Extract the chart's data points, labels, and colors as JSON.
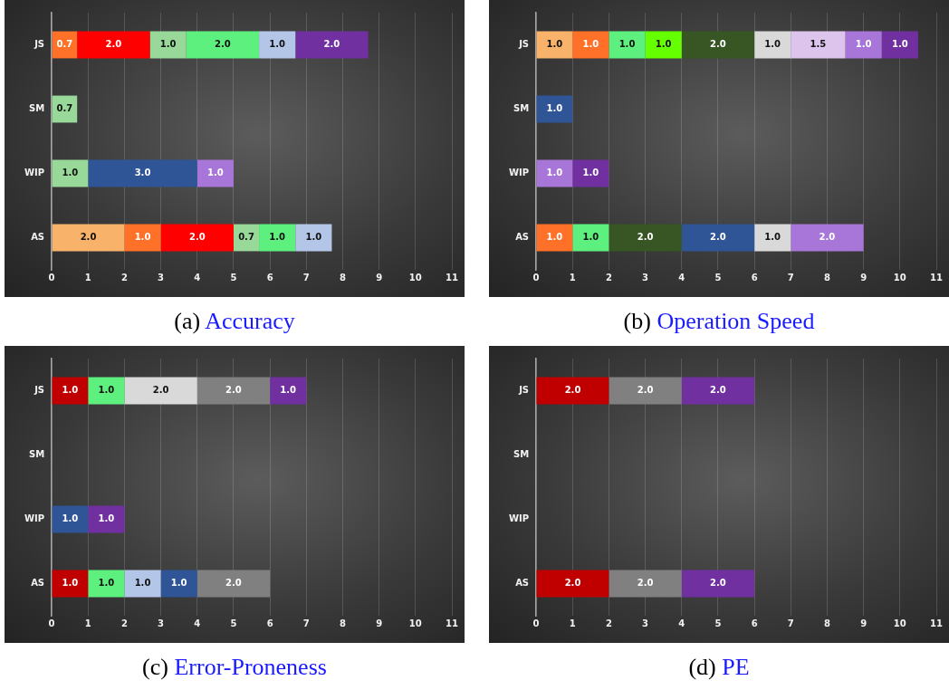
{
  "chart_data": [
    {
      "type": "bar",
      "title": "(a) Accuracy",
      "orientation": "horizontal",
      "stacked": true,
      "categories": [
        "JS",
        "SM",
        "WIP",
        "AS"
      ],
      "xlim": [
        0,
        11
      ],
      "xticks": [
        0,
        1,
        2,
        3,
        4,
        5,
        6,
        7,
        8,
        9,
        10,
        11
      ],
      "grid": "x",
      "legend": false,
      "series": [
        {
          "color": "#f8b26a",
          "values": [
            null,
            null,
            null,
            2.0
          ],
          "value_labels": [
            null,
            null,
            null,
            "2.0"
          ]
        },
        {
          "color": "#ff7128",
          "values": [
            0.7,
            null,
            null,
            1.0
          ],
          "value_labels": [
            "0.7",
            null,
            null,
            "1.0"
          ]
        },
        {
          "color": "#ff0000",
          "values": [
            2.0,
            null,
            null,
            2.0
          ],
          "value_labels": [
            "2.0",
            null,
            null,
            "2.0"
          ]
        },
        {
          "color": "#98d99a",
          "values": [
            1.0,
            0.7,
            1.0,
            0.7
          ],
          "value_labels": [
            "1.0",
            "0.7",
            "1.0",
            "0.7"
          ]
        },
        {
          "color": "#5ef07f",
          "values": [
            2.0,
            null,
            null,
            1.0
          ],
          "value_labels": [
            "2.0",
            null,
            null,
            "1.0"
          ]
        },
        {
          "color": "#b4c6e7",
          "values": [
            1.0,
            null,
            null,
            1.0
          ],
          "value_labels": [
            "1.0",
            null,
            null,
            "1.0"
          ]
        },
        {
          "color": "#2f5597",
          "values": [
            null,
            null,
            3.0,
            null
          ],
          "value_labels": [
            null,
            null,
            "3.0",
            null
          ]
        },
        {
          "color": "#a876d8",
          "values": [
            null,
            null,
            1.0,
            null
          ],
          "value_labels": [
            null,
            null,
            "1.0",
            null
          ]
        },
        {
          "color": "#7030a0",
          "values": [
            2.0,
            null,
            null,
            null
          ],
          "value_labels": [
            "2.0",
            null,
            null,
            null
          ]
        }
      ]
    },
    {
      "type": "bar",
      "title": "(b) Operation Speed",
      "orientation": "horizontal",
      "stacked": true,
      "categories": [
        "JS",
        "SM",
        "WIP",
        "AS"
      ],
      "xlim": [
        0,
        11
      ],
      "xticks": [
        0,
        1,
        2,
        3,
        4,
        5,
        6,
        7,
        8,
        9,
        10,
        11
      ],
      "grid": "x",
      "legend": false,
      "series": [
        {
          "color": "#f8b26a",
          "values": [
            1.0,
            null,
            null,
            null
          ],
          "value_labels": [
            "1.0",
            null,
            null,
            null
          ]
        },
        {
          "color": "#ff7128",
          "values": [
            1.0,
            null,
            null,
            1.0
          ],
          "value_labels": [
            "1.0",
            null,
            null,
            "1.0"
          ]
        },
        {
          "color": "#5ef07f",
          "values": [
            1.0,
            null,
            null,
            1.0
          ],
          "value_labels": [
            "1.0",
            null,
            null,
            "1.0"
          ]
        },
        {
          "color": "#66ff00",
          "values": [
            1.0,
            null,
            null,
            null
          ],
          "value_labels": [
            "1.0",
            null,
            null,
            null
          ]
        },
        {
          "color": "#375623",
          "values": [
            2.0,
            null,
            null,
            2.0
          ],
          "value_labels": [
            "2.0",
            null,
            null,
            "2.0"
          ]
        },
        {
          "color": "#2f5597",
          "values": [
            null,
            1.0,
            null,
            2.0
          ],
          "value_labels": [
            null,
            "1.0",
            null,
            "2.0"
          ]
        },
        {
          "color": "#d9d9d9",
          "values": [
            1.0,
            null,
            null,
            1.0
          ],
          "value_labels": [
            "1.0",
            null,
            null,
            "1.0"
          ]
        },
        {
          "color": "#dcc4ec",
          "values": [
            1.5,
            null,
            null,
            null
          ],
          "value_labels": [
            "1.5",
            null,
            null,
            null
          ]
        },
        {
          "color": "#a876d8",
          "values": [
            1.0,
            null,
            1.0,
            2.0
          ],
          "value_labels": [
            "1.0",
            null,
            "1.0",
            "2.0"
          ]
        },
        {
          "color": "#7030a0",
          "values": [
            1.0,
            null,
            1.0,
            null
          ],
          "value_labels": [
            "1.0",
            null,
            "1.0",
            null
          ]
        }
      ]
    },
    {
      "type": "bar",
      "title": "(c) Error-Proneness",
      "orientation": "horizontal",
      "stacked": true,
      "categories": [
        "JS",
        "SM",
        "WIP",
        "AS"
      ],
      "xlim": [
        0,
        11
      ],
      "xticks": [
        0,
        1,
        2,
        3,
        4,
        5,
        6,
        7,
        8,
        9,
        10,
        11
      ],
      "grid": "x",
      "legend": false,
      "series": [
        {
          "color": "#c00000",
          "values": [
            1.0,
            null,
            null,
            1.0
          ],
          "value_labels": [
            "1.0",
            null,
            null,
            "1.0"
          ]
        },
        {
          "color": "#5ef07f",
          "values": [
            1.0,
            null,
            null,
            1.0
          ],
          "value_labels": [
            "1.0",
            null,
            null,
            "1.0"
          ]
        },
        {
          "color": "#b4c6e7",
          "values": [
            null,
            null,
            null,
            1.0
          ],
          "value_labels": [
            null,
            null,
            null,
            "1.0"
          ]
        },
        {
          "color": "#2f5597",
          "values": [
            null,
            null,
            1.0,
            1.0
          ],
          "value_labels": [
            null,
            null,
            "1.0",
            "1.0"
          ]
        },
        {
          "color": "#d9d9d9",
          "values": [
            2.0,
            null,
            null,
            null
          ],
          "value_labels": [
            "2.0",
            null,
            null,
            null
          ]
        },
        {
          "color": "#808080",
          "values": [
            2.0,
            null,
            null,
            2.0
          ],
          "value_labels": [
            "2.0",
            null,
            null,
            "2.0"
          ]
        },
        {
          "color": "#7030a0",
          "values": [
            1.0,
            null,
            1.0,
            null
          ],
          "value_labels": [
            "1.0",
            null,
            "1.0",
            null
          ]
        }
      ]
    },
    {
      "type": "bar",
      "title": "(d) PE",
      "orientation": "horizontal",
      "stacked": true,
      "categories": [
        "JS",
        "SM",
        "WIP",
        "AS"
      ],
      "xlim": [
        0,
        11
      ],
      "xticks": [
        0,
        1,
        2,
        3,
        4,
        5,
        6,
        7,
        8,
        9,
        10,
        11
      ],
      "grid": "x",
      "legend": false,
      "series": [
        {
          "color": "#c00000",
          "values": [
            2.0,
            null,
            null,
            2.0
          ],
          "value_labels": [
            "2.0",
            null,
            null,
            "2.0"
          ]
        },
        {
          "color": "#808080",
          "values": [
            2.0,
            null,
            null,
            2.0
          ],
          "value_labels": [
            "2.0",
            null,
            null,
            "2.0"
          ]
        },
        {
          "color": "#7030a0",
          "values": [
            2.0,
            null,
            null,
            2.0
          ],
          "value_labels": [
            "2.0",
            null,
            null,
            "2.0"
          ]
        }
      ]
    }
  ]
}
